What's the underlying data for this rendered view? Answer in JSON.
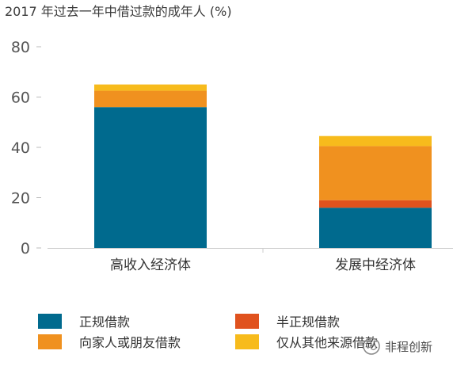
{
  "chart_data": {
    "type": "bar",
    "stacked": true,
    "title": "2017 年过去一年中借过款的成年人 (%)",
    "categories": [
      "高收入经济体",
      "发展中经济体"
    ],
    "yticks": [
      "0",
      "20",
      "40",
      "60",
      "80"
    ],
    "ylim": [
      0,
      80
    ],
    "grid": false,
    "legend_position": "bottom",
    "series": [
      {
        "name": "正规借款",
        "color": "#006a8e",
        "values": [
          56,
          16
        ]
      },
      {
        "name": "半正规借款",
        "color": "#e0521e",
        "values": [
          0,
          3
        ]
      },
      {
        "name": "向家人或朋友借款",
        "color": "#f0911f",
        "values": [
          6.5,
          21.5
        ]
      },
      {
        "name": "仅从其他来源借款",
        "color": "#f7bb1c",
        "values": [
          2.5,
          4
        ]
      }
    ]
  },
  "watermark": {
    "text": "非程创新"
  }
}
